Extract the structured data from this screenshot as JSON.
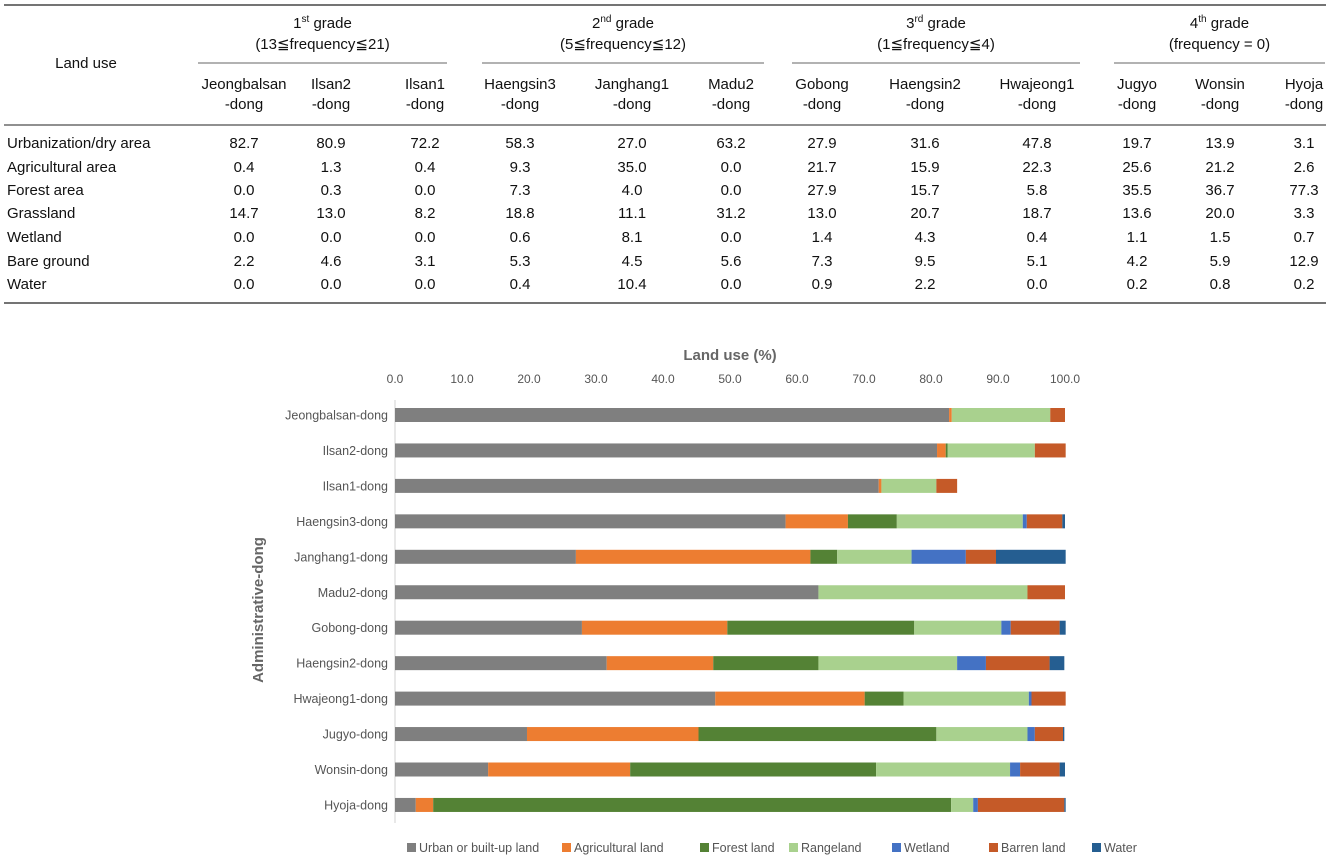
{
  "table": {
    "row_header": "Land use",
    "grades": [
      {
        "num": "1",
        "sup": "st",
        "label": " grade",
        "range": "(13≦frequency≦21)",
        "span": 3
      },
      {
        "num": "2",
        "sup": "nd",
        "label": " grade",
        "range": "(5≦frequency≦12)",
        "span": 3
      },
      {
        "num": "3",
        "sup": "rd",
        "label": " grade",
        "range": "(1≦frequency≦4)",
        "span": 3
      },
      {
        "num": "4",
        "sup": "th",
        "label": " grade",
        "range": "(frequency = 0)",
        "span": 3
      }
    ],
    "columns": [
      [
        "Jeongbalsan",
        "-dong"
      ],
      [
        "Ilsan2",
        "-dong"
      ],
      [
        "Ilsan1",
        "-dong"
      ],
      [
        "Haengsin3",
        "-dong"
      ],
      [
        "Janghang1",
        "-dong"
      ],
      [
        "Madu2",
        "-dong"
      ],
      [
        "Gobong",
        "-dong"
      ],
      [
        "Haengsin2",
        "-dong"
      ],
      [
        "Hwajeong1",
        "-dong"
      ],
      [
        "Jugyo",
        "-dong"
      ],
      [
        "Wonsin",
        "-dong"
      ],
      [
        "Hyoja",
        "-dong"
      ]
    ],
    "rows": [
      {
        "label": "Urbanization/dry area",
        "values": [
          "82.7",
          "80.9",
          "72.2",
          "58.3",
          "27.0",
          "63.2",
          "27.9",
          "31.6",
          "47.8",
          "19.7",
          "13.9",
          "3.1"
        ]
      },
      {
        "label": "Agricultural area",
        "values": [
          "0.4",
          "1.3",
          "0.4",
          "9.3",
          "35.0",
          "0.0",
          "21.7",
          "15.9",
          "22.3",
          "25.6",
          "21.2",
          "2.6"
        ]
      },
      {
        "label": "Forest area",
        "values": [
          "0.0",
          "0.3",
          "0.0",
          "7.3",
          "4.0",
          "0.0",
          "27.9",
          "15.7",
          "5.8",
          "35.5",
          "36.7",
          "77.3"
        ]
      },
      {
        "label": "Grassland",
        "values": [
          "14.7",
          "13.0",
          "8.2",
          "18.8",
          "11.1",
          "31.2",
          "13.0",
          "20.7",
          "18.7",
          "13.6",
          "20.0",
          "3.3"
        ]
      },
      {
        "label": "Wetland",
        "values": [
          "0.0",
          "0.0",
          "0.0",
          "0.6",
          "8.1",
          "0.0",
          "1.4",
          "4.3",
          "0.4",
          "1.1",
          "1.5",
          "0.7"
        ]
      },
      {
        "label": "Bare ground",
        "values": [
          "2.2",
          "4.6",
          "3.1",
          "5.3",
          "4.5",
          "5.6",
          "7.3",
          "9.5",
          "5.1",
          "4.2",
          "5.9",
          "12.9"
        ]
      },
      {
        "label": "Water",
        "values": [
          "0.0",
          "0.0",
          "0.0",
          "0.4",
          "10.4",
          "0.0",
          "0.9",
          "2.2",
          "0.0",
          "0.2",
          "0.8",
          "0.2"
        ]
      }
    ]
  },
  "chart_data": {
    "type": "bar",
    "orientation": "horizontal",
    "stacked": true,
    "title": "Land use (%)",
    "xlabel": "Land use (%)",
    "ylabel": "Administrative-dong",
    "xlim": [
      0,
      100
    ],
    "xticks": [
      "0.0",
      "10.0",
      "20.0",
      "30.0",
      "40.0",
      "50.0",
      "60.0",
      "70.0",
      "80.0",
      "90.0",
      "100.0"
    ],
    "grid": false,
    "legend_position": "bottom",
    "categories": [
      "Jeongbalsan-dong",
      "Ilsan2-dong",
      "Ilsan1-dong",
      "Haengsin3-dong",
      "Janghang1-dong",
      "Madu2-dong",
      "Gobong-dong",
      "Haengsin2-dong",
      "Hwajeong1-dong",
      "Jugyo-dong",
      "Wonsin-dong",
      "Hyoja-dong"
    ],
    "series": [
      {
        "name": "Urban or built-up land",
        "color": "#7f7f7f",
        "values": [
          82.7,
          80.9,
          72.2,
          58.3,
          27.0,
          63.2,
          27.9,
          31.6,
          47.8,
          19.7,
          13.9,
          3.1
        ]
      },
      {
        "name": "Agricultural land",
        "color": "#ed7d31",
        "values": [
          0.4,
          1.3,
          0.4,
          9.3,
          35.0,
          0.0,
          21.7,
          15.9,
          22.3,
          25.6,
          21.2,
          2.6
        ]
      },
      {
        "name": "Forest land",
        "color": "#548235",
        "values": [
          0.0,
          0.3,
          0.0,
          7.3,
          4.0,
          0.0,
          27.9,
          15.7,
          5.8,
          35.5,
          36.7,
          77.3
        ]
      },
      {
        "name": "Rangeland",
        "color": "#a9d18e",
        "values": [
          14.7,
          13.0,
          8.2,
          18.8,
          11.1,
          31.2,
          13.0,
          20.7,
          18.7,
          13.6,
          20.0,
          3.3
        ]
      },
      {
        "name": "Wetland",
        "color": "#4472c4",
        "values": [
          0.0,
          0.0,
          0.0,
          0.6,
          8.1,
          0.0,
          1.4,
          4.3,
          0.4,
          1.1,
          1.5,
          0.7
        ]
      },
      {
        "name": "Barren land",
        "color": "#c55a28",
        "values": [
          2.2,
          4.6,
          3.1,
          5.3,
          4.5,
          5.6,
          7.3,
          9.5,
          5.1,
          4.2,
          5.9,
          12.9
        ]
      },
      {
        "name": "Water",
        "color": "#255e91",
        "values": [
          0.0,
          0.0,
          0.0,
          0.4,
          10.4,
          0.0,
          0.9,
          2.2,
          0.0,
          0.2,
          0.8,
          0.2
        ]
      }
    ]
  }
}
